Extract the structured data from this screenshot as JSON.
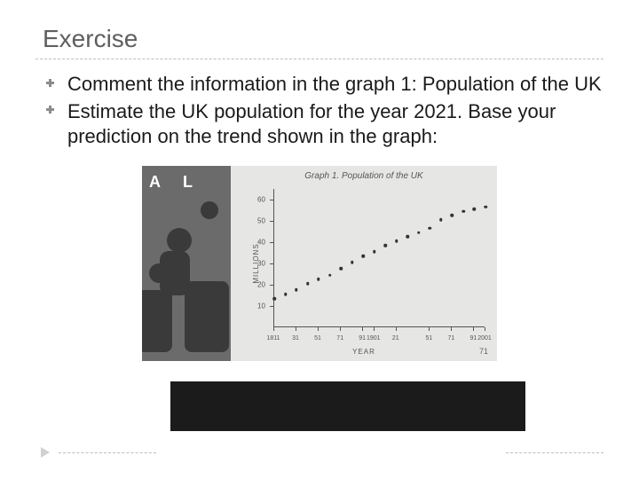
{
  "title": "Exercise",
  "bullets": [
    "Comment the information in the graph 1: Population of the UK",
    "Estimate the UK population for the year 2021. Base your prediction on the trend shown in the graph:"
  ],
  "chart": {
    "type": "scatter",
    "title": "Graph 1. Population of the UK",
    "ylabel": "MILLIONS",
    "xlabel": "YEAR",
    "ylim": [
      0,
      65
    ],
    "yticks": [
      10,
      20,
      30,
      40,
      50,
      60
    ],
    "xticks": [
      "1811",
      "31",
      "51",
      "71",
      "91",
      "1901",
      "21",
      "51",
      "71",
      "91",
      "2001"
    ],
    "xtick_positions": [
      0,
      0.105,
      0.21,
      0.316,
      0.421,
      0.474,
      0.579,
      0.737,
      0.842,
      0.947,
      1.0
    ],
    "points_x": [
      0,
      0.053,
      0.105,
      0.158,
      0.21,
      0.263,
      0.316,
      0.368,
      0.421,
      0.474,
      0.526,
      0.579,
      0.632,
      0.684,
      0.737,
      0.789,
      0.842,
      0.895,
      0.947,
      1.0
    ],
    "points_y": [
      13,
      15,
      17,
      20,
      22,
      24,
      27,
      30,
      33,
      35,
      38,
      40,
      42,
      44,
      46,
      50,
      52,
      54,
      55,
      56
    ],
    "background_color": "#e6e6e4",
    "axis_color": "#555555",
    "dot_color": "#333333",
    "page_number": "71"
  }
}
